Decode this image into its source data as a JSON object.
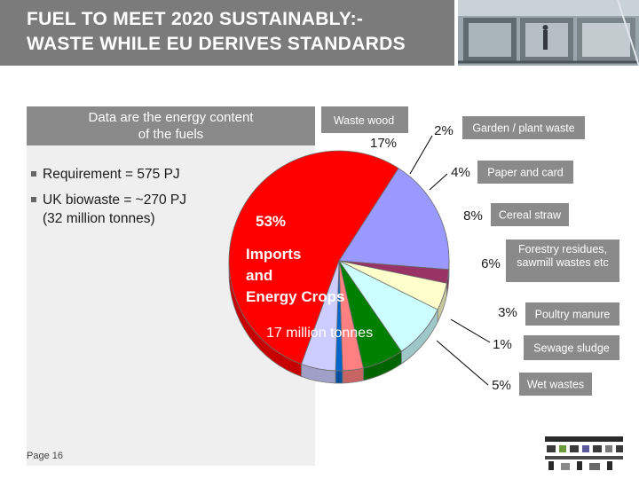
{
  "header": {
    "title": "FUEL TO MEET 2020 SUSTAINABLY:-\nWASTE WHILE EU DERIVES STANDARDS"
  },
  "note": {
    "text": "Data are the energy content\nof the fuels"
  },
  "bullets": [
    {
      "text": "Requirement = 575 PJ"
    },
    {
      "text": "UK biowaste  = ~270 PJ\n(32 million tonnes)"
    }
  ],
  "footer": {
    "page": "Page 16"
  },
  "chart_data": {
    "type": "pie",
    "title": "",
    "slices": [
      {
        "label": "Imports and Energy Crops",
        "value": 53,
        "pct_label": "53%",
        "extra_label": "17 million tonnes",
        "color": "#ff0000"
      },
      {
        "label": "Waste wood",
        "value": 17,
        "pct_label": "17%",
        "color": "#9999ff"
      },
      {
        "label": "Garden / plant waste",
        "value": 2,
        "pct_label": "2%",
        "color": "#993366"
      },
      {
        "label": "Paper and card",
        "value": 4,
        "pct_label": "4%",
        "color": "#ffffcc"
      },
      {
        "label": "Cereal straw",
        "value": 8,
        "pct_label": "8%",
        "color": "#ccffff"
      },
      {
        "label": "Forestry residues, sawmill wastes etc",
        "value": 6,
        "pct_label": "6%",
        "color": "#008000"
      },
      {
        "label": "Poultry manure",
        "value": 3,
        "pct_label": "3%",
        "color": "#ff8080"
      },
      {
        "label": "Sewage sludge",
        "value": 1,
        "pct_label": "1%",
        "color": "#0066cc"
      },
      {
        "label": "Wet wastes",
        "value": 5,
        "pct_label": "5%",
        "color": "#ccccff"
      }
    ],
    "imports_label": "Imports\nand\nEnergy Crops"
  }
}
